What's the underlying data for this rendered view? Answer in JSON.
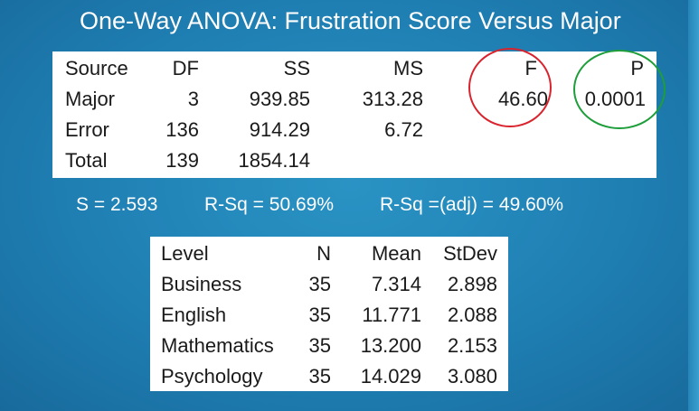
{
  "title": "One-Way ANOVA: Frustration Score Versus Major",
  "anova_table": {
    "headers": [
      "Source",
      "DF",
      "SS",
      "MS",
      "F",
      "P"
    ],
    "rows": [
      {
        "source": "Major",
        "df": "3",
        "ss": "939.85",
        "ms": "313.28",
        "f": "46.60",
        "p": "0.0001"
      },
      {
        "source": "Error",
        "df": "136",
        "ss": "914.29",
        "ms": "6.72",
        "f": "",
        "p": ""
      },
      {
        "source": "Total",
        "df": "139",
        "ss": "1854.14",
        "ms": "",
        "f": "",
        "p": ""
      }
    ]
  },
  "summary": {
    "s": "S = 2.593",
    "rsq": "R-Sq = 50.69%",
    "rsq_adj": "R-Sq =(adj) = 49.60%"
  },
  "level_table": {
    "headers": [
      "Level",
      "N",
      "Mean",
      "StDev"
    ],
    "rows": [
      {
        "level": "Business",
        "n": "35",
        "mean": "7.314",
        "stdev": "2.898"
      },
      {
        "level": "English",
        "n": "35",
        "mean": "11.771",
        "stdev": "2.088"
      },
      {
        "level": "Mathematics",
        "n": "35",
        "mean": "13.200",
        "stdev": "2.153"
      },
      {
        "level": "Psychology",
        "n": "35",
        "mean": "14.029",
        "stdev": "3.080"
      }
    ]
  },
  "annotations": {
    "f_circle_color": "#d9232d",
    "p_circle_color": "#1e9e3a"
  }
}
